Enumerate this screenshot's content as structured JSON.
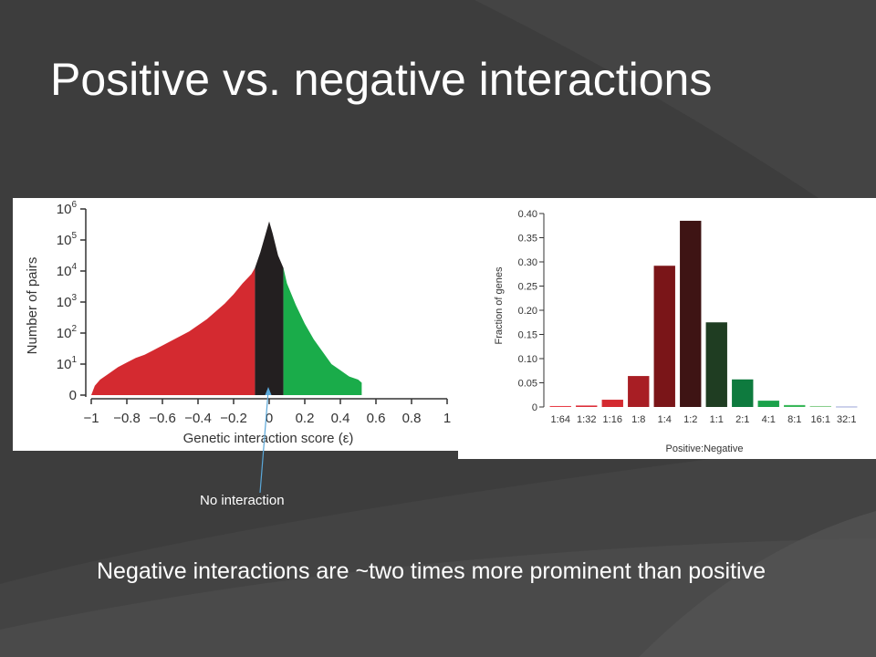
{
  "slide": {
    "title": "Positive vs. negative interactions",
    "callout": "No interaction",
    "body": "Negative interactions are ~two times more prominent than positive",
    "background_color": "#3d3d3d"
  },
  "chart_data": [
    {
      "type": "area",
      "title": "",
      "xlabel": "Genetic interaction score (ε)",
      "ylabel": "Number of pairs",
      "xlim": [
        -1,
        1
      ],
      "ylim_log10": [
        0,
        6
      ],
      "y_scale": "log",
      "x_ticks": [
        "−1",
        "−0.8",
        "−0.6",
        "−0.4",
        "−0.2",
        "0",
        "0.2",
        "0.4",
        "0.6",
        "0.8",
        "1"
      ],
      "y_ticks": [
        {
          "base": "0",
          "exp": ""
        },
        {
          "base": "10",
          "exp": "1"
        },
        {
          "base": "10",
          "exp": "2"
        },
        {
          "base": "10",
          "exp": "3"
        },
        {
          "base": "10",
          "exp": "4"
        },
        {
          "base": "10",
          "exp": "5"
        },
        {
          "base": "10",
          "exp": "6"
        }
      ],
      "regions": [
        {
          "name": "negative",
          "color": "#d42a30",
          "from": -1,
          "to": -0.08
        },
        {
          "name": "no interaction",
          "color": "#231f20",
          "from": -0.08,
          "to": 0.08
        },
        {
          "name": "positive",
          "color": "#1aac4a",
          "from": 0.08,
          "to": 0.52
        }
      ],
      "x": [
        -0.98,
        -0.95,
        -0.9,
        -0.85,
        -0.8,
        -0.75,
        -0.7,
        -0.65,
        -0.6,
        -0.55,
        -0.5,
        -0.45,
        -0.4,
        -0.35,
        -0.3,
        -0.25,
        -0.2,
        -0.15,
        -0.1,
        -0.08,
        -0.05,
        -0.02,
        0,
        0.02,
        0.05,
        0.08,
        0.1,
        0.15,
        0.2,
        0.25,
        0.3,
        0.35,
        0.4,
        0.45,
        0.5,
        0.52
      ],
      "log10_counts": [
        0.3,
        0.5,
        0.7,
        0.9,
        1.05,
        1.2,
        1.3,
        1.45,
        1.6,
        1.75,
        1.9,
        2.05,
        2.25,
        2.45,
        2.7,
        2.95,
        3.25,
        3.6,
        3.9,
        4.1,
        4.6,
        5.2,
        5.6,
        5.2,
        4.5,
        4.1,
        3.6,
        2.9,
        2.3,
        1.8,
        1.4,
        1.0,
        0.8,
        0.6,
        0.5,
        0.4
      ]
    },
    {
      "type": "bar",
      "title": "",
      "xlabel": "Positive:Negative",
      "ylabel": "Fraction of genes",
      "ylim": [
        0,
        0.4
      ],
      "y_ticks": [
        "0",
        "0.05",
        "0.10",
        "0.15",
        "0.20",
        "0.25",
        "0.30",
        "0.35",
        "0.40"
      ],
      "categories": [
        "1:64",
        "1:32",
        "1:16",
        "1:8",
        "1:4",
        "1:2",
        "1:1",
        "2:1",
        "4:1",
        "8:1",
        "16:1",
        "32:1"
      ],
      "values": [
        0.002,
        0.003,
        0.015,
        0.064,
        0.292,
        0.385,
        0.175,
        0.057,
        0.013,
        0.004,
        0.002,
        0.001
      ],
      "colors": [
        "#e8404a",
        "#dc2e38",
        "#d42a30",
        "#a81e24",
        "#7a1518",
        "#3e1414",
        "#1f3d22",
        "#0e7a3e",
        "#1aa24a",
        "#3ab85a",
        "#8bcf8f",
        "#9aa4d8"
      ]
    }
  ]
}
